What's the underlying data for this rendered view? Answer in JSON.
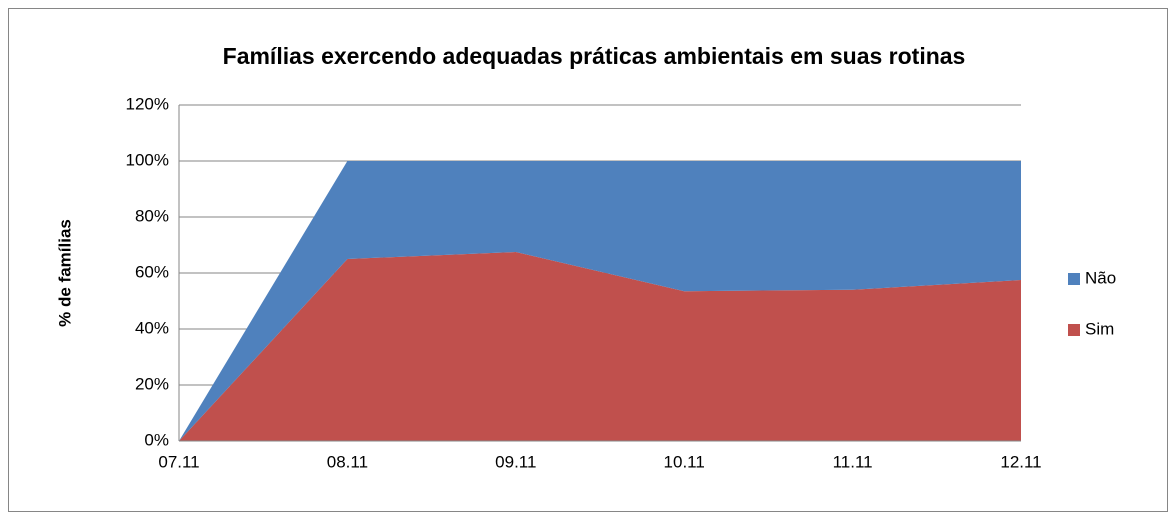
{
  "chart_data": {
    "type": "stacked_area",
    "title": "Famílias exercendo adequadas práticas ambientais em suas rotinas",
    "ylabel": "% de famílias",
    "categories": [
      "07.11",
      "08.11",
      "09.11",
      "10.11",
      "11.11",
      "12.11"
    ],
    "series": [
      {
        "name": "Sim",
        "color": "#c0504d",
        "values": [
          0,
          65,
          67.5,
          53.5,
          54,
          57.5
        ]
      },
      {
        "name": "Não",
        "color": "#4f81bd",
        "values": [
          0,
          35,
          32.5,
          46.5,
          46,
          42.5
        ]
      }
    ],
    "ylim": [
      0,
      120
    ],
    "yticks": [
      {
        "value": 0,
        "label": "0%"
      },
      {
        "value": 20,
        "label": "20%"
      },
      {
        "value": 40,
        "label": "40%"
      },
      {
        "value": 60,
        "label": "60%"
      },
      {
        "value": 80,
        "label": "80%"
      },
      {
        "value": 100,
        "label": "100%"
      },
      {
        "value": 120,
        "label": "120%"
      }
    ],
    "grid": true,
    "legend": "right"
  }
}
